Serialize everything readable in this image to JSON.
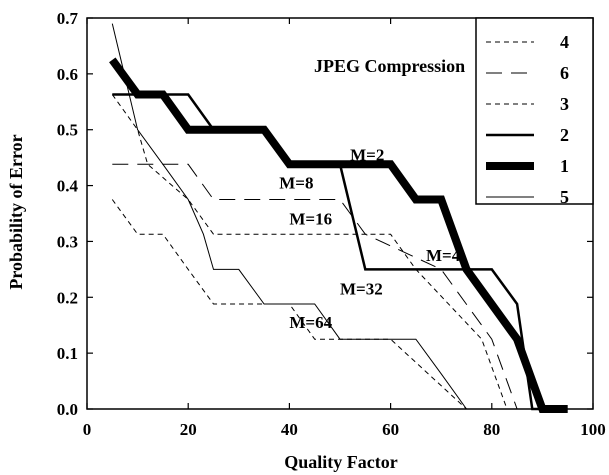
{
  "chart_data": {
    "type": "line",
    "title": "JPEG Compression",
    "xlabel": "Quality Factor",
    "ylabel": "Probability of Error",
    "xlim": [
      0,
      100
    ],
    "ylim": [
      0,
      0.7
    ],
    "x_ticks": [
      "0",
      "20",
      "40",
      "60",
      "80",
      "100"
    ],
    "y_ticks": [
      "0.0",
      "0.1",
      "0.2",
      "0.3",
      "0.4",
      "0.5",
      "0.6",
      "0.7"
    ],
    "grid": false,
    "legend_position": "top-right",
    "series": [
      {
        "name": "4",
        "style": "dashed",
        "width": 1,
        "color": "#000000",
        "points": [
          [
            5,
            0.563
          ],
          [
            10,
            0.5
          ],
          [
            12,
            0.438
          ],
          [
            20,
            0.375
          ],
          [
            25,
            0.313
          ],
          [
            50,
            0.313
          ],
          [
            60,
            0.313
          ],
          [
            65,
            0.25
          ],
          [
            78,
            0.125
          ],
          [
            83,
            0.0
          ],
          [
            88,
            0.0
          ]
        ]
      },
      {
        "name": "6",
        "style": "longdash",
        "width": 1,
        "color": "#000000",
        "points": [
          [
            5,
            0.438
          ],
          [
            20,
            0.438
          ],
          [
            25,
            0.375
          ],
          [
            35,
            0.375
          ],
          [
            40,
            0.375
          ],
          [
            50,
            0.375
          ],
          [
            55,
            0.313
          ],
          [
            70,
            0.25
          ],
          [
            80,
            0.125
          ],
          [
            85,
            0.0
          ],
          [
            88,
            0.0
          ]
        ]
      },
      {
        "name": "3",
        "style": "dashed",
        "width": 1,
        "color": "#000000",
        "points": [
          [
            5,
            0.375
          ],
          [
            10,
            0.313
          ],
          [
            15,
            0.313
          ],
          [
            20,
            0.25
          ],
          [
            25,
            0.188
          ],
          [
            30,
            0.188
          ],
          [
            40,
            0.188
          ],
          [
            45,
            0.125
          ],
          [
            50,
            0.125
          ],
          [
            60,
            0.125
          ],
          [
            75,
            0.0
          ],
          [
            80,
            0.0
          ]
        ]
      },
      {
        "name": "2",
        "style": "solid",
        "width": 2.5,
        "color": "#000000",
        "points": [
          [
            5,
            0.563
          ],
          [
            20,
            0.563
          ],
          [
            25,
            0.5
          ],
          [
            35,
            0.5
          ],
          [
            40,
            0.438
          ],
          [
            50,
            0.438
          ],
          [
            55,
            0.25
          ],
          [
            75,
            0.25
          ],
          [
            80,
            0.25
          ],
          [
            85,
            0.188
          ],
          [
            88,
            0.0
          ],
          [
            90,
            0.0
          ]
        ]
      },
      {
        "name": "1",
        "style": "solid",
        "width": 8,
        "color": "#000000",
        "points": [
          [
            5,
            0.625
          ],
          [
            10,
            0.563
          ],
          [
            15,
            0.563
          ],
          [
            20,
            0.5
          ],
          [
            25,
            0.5
          ],
          [
            35,
            0.5
          ],
          [
            40,
            0.438
          ],
          [
            60,
            0.438
          ],
          [
            65,
            0.375
          ],
          [
            70,
            0.375
          ],
          [
            75,
            0.25
          ],
          [
            85,
            0.125
          ],
          [
            90,
            0.0
          ],
          [
            95,
            0.0
          ]
        ]
      },
      {
        "name": "5",
        "style": "solid",
        "width": 1,
        "color": "#000000",
        "points": [
          [
            5,
            0.69
          ],
          [
            10,
            0.5
          ],
          [
            15,
            0.438
          ],
          [
            20,
            0.375
          ],
          [
            23,
            0.313
          ],
          [
            25,
            0.25
          ],
          [
            30,
            0.25
          ],
          [
            35,
            0.188
          ],
          [
            40,
            0.188
          ],
          [
            45,
            0.188
          ],
          [
            50,
            0.125
          ],
          [
            60,
            0.125
          ],
          [
            65,
            0.125
          ],
          [
            70,
            0.063
          ],
          [
            75,
            0.0
          ],
          [
            80,
            0.0
          ]
        ]
      }
    ],
    "annotations": [
      {
        "text": "M=2",
        "x": 52,
        "y": 0.445
      },
      {
        "text": "M=8",
        "x": 38,
        "y": 0.395
      },
      {
        "text": "M=16",
        "x": 40,
        "y": 0.33
      },
      {
        "text": "M=4",
        "x": 67,
        "y": 0.265
      },
      {
        "text": "M=32",
        "x": 50,
        "y": 0.205
      },
      {
        "text": "M=64",
        "x": 40,
        "y": 0.145
      }
    ]
  }
}
